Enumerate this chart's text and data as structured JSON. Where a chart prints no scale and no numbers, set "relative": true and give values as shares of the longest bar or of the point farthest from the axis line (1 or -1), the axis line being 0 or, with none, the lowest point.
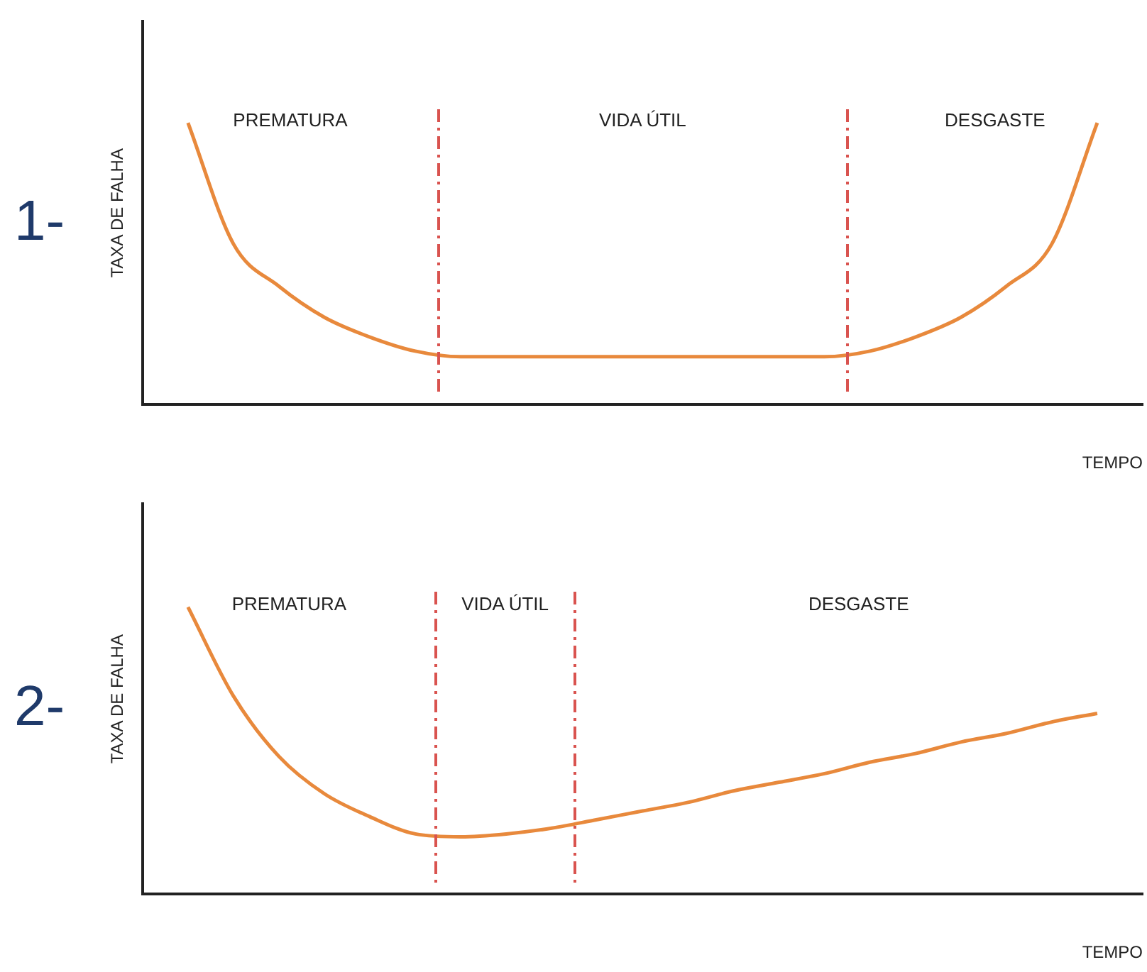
{
  "chart_data": [
    {
      "type": "line",
      "title": "1-",
      "ylabel": "TAXA DE FALHA",
      "xlabel": "TEMPO",
      "relative": true,
      "marker": "none",
      "categories": [
        null,
        null,
        null,
        null,
        null,
        null,
        null,
        null,
        null,
        null,
        null,
        null,
        null,
        null,
        null,
        null,
        null,
        null,
        null,
        null,
        null,
        null,
        null
      ],
      "series": [
        {
          "color": "#e8893c",
          "values": [
            null,
            1,
            0.57,
            0.42,
            0.31,
            0.24,
            0.19,
            0.17,
            0.17,
            0.17,
            0.17,
            0.17,
            0.17,
            0.17,
            0.17,
            0.17,
            0.19,
            0.24,
            0.31,
            0.42,
            0.57,
            1,
            null
          ]
        }
      ],
      "annotations": [
        "PREMATURA",
        "VIDA ÚTIL",
        "DESGASTE"
      ]
    },
    {
      "type": "line",
      "title": "2-",
      "ylabel": "TAXA DE FALHA",
      "xlabel": "TEMPO",
      "relative": true,
      "marker": "none",
      "categories": [
        null,
        null,
        null,
        null,
        null,
        null,
        null,
        null,
        null,
        null,
        null,
        null,
        null,
        null,
        null,
        null,
        null,
        null,
        null,
        null,
        null,
        null,
        null
      ],
      "series": [
        {
          "color": "#e8893c",
          "values": [
            null,
            1,
            0.69,
            0.48,
            0.35,
            0.27,
            0.21,
            0.2,
            0.21,
            0.23,
            0.26,
            0.29,
            0.32,
            0.36,
            0.39,
            0.42,
            0.46,
            0.49,
            0.53,
            0.56,
            0.6,
            0.63,
            null
          ]
        }
      ],
      "annotations": [
        "PREMATURA",
        "VIDA ÚTIL",
        "DESGASTE"
      ]
    }
  ]
}
